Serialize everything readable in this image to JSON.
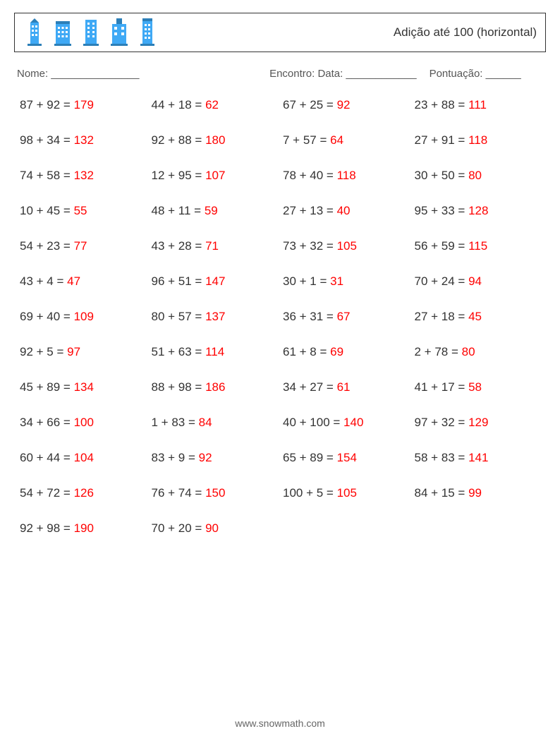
{
  "header": {
    "title": "Adição até 100 (horizontal)"
  },
  "info": {
    "nome_label": "Nome: _______________",
    "encontro_label": "Encontro: Data: ____________",
    "pontuacao_label": "Pontuação: ______"
  },
  "grid": {
    "columns": 4,
    "rows": 13,
    "font_size": 17,
    "expr_color": "#333333",
    "ans_color": "#ff0000",
    "background_color": "#ffffff",
    "problems": [
      {
        "a": 87,
        "b": 92,
        "ans": 179
      },
      {
        "a": 44,
        "b": 18,
        "ans": 62
      },
      {
        "a": 67,
        "b": 25,
        "ans": 92
      },
      {
        "a": 23,
        "b": 88,
        "ans": 111
      },
      {
        "a": 98,
        "b": 34,
        "ans": 132
      },
      {
        "a": 92,
        "b": 88,
        "ans": 180
      },
      {
        "a": 7,
        "b": 57,
        "ans": 64
      },
      {
        "a": 27,
        "b": 91,
        "ans": 118
      },
      {
        "a": 74,
        "b": 58,
        "ans": 132
      },
      {
        "a": 12,
        "b": 95,
        "ans": 107
      },
      {
        "a": 78,
        "b": 40,
        "ans": 118
      },
      {
        "a": 30,
        "b": 50,
        "ans": 80
      },
      {
        "a": 10,
        "b": 45,
        "ans": 55
      },
      {
        "a": 48,
        "b": 11,
        "ans": 59
      },
      {
        "a": 27,
        "b": 13,
        "ans": 40
      },
      {
        "a": 95,
        "b": 33,
        "ans": 128
      },
      {
        "a": 54,
        "b": 23,
        "ans": 77
      },
      {
        "a": 43,
        "b": 28,
        "ans": 71
      },
      {
        "a": 73,
        "b": 32,
        "ans": 105
      },
      {
        "a": 56,
        "b": 59,
        "ans": 115
      },
      {
        "a": 43,
        "b": 4,
        "ans": 47
      },
      {
        "a": 96,
        "b": 51,
        "ans": 147
      },
      {
        "a": 30,
        "b": 1,
        "ans": 31
      },
      {
        "a": 70,
        "b": 24,
        "ans": 94
      },
      {
        "a": 69,
        "b": 40,
        "ans": 109
      },
      {
        "a": 80,
        "b": 57,
        "ans": 137
      },
      {
        "a": 36,
        "b": 31,
        "ans": 67
      },
      {
        "a": 27,
        "b": 18,
        "ans": 45
      },
      {
        "a": 92,
        "b": 5,
        "ans": 97
      },
      {
        "a": 51,
        "b": 63,
        "ans": 114
      },
      {
        "a": 61,
        "b": 8,
        "ans": 69
      },
      {
        "a": 2,
        "b": 78,
        "ans": 80
      },
      {
        "a": 45,
        "b": 89,
        "ans": 134
      },
      {
        "a": 88,
        "b": 98,
        "ans": 186
      },
      {
        "a": 34,
        "b": 27,
        "ans": 61
      },
      {
        "a": 41,
        "b": 17,
        "ans": 58
      },
      {
        "a": 34,
        "b": 66,
        "ans": 100
      },
      {
        "a": 1,
        "b": 83,
        "ans": 84
      },
      {
        "a": 40,
        "b": 100,
        "ans": 140
      },
      {
        "a": 97,
        "b": 32,
        "ans": 129
      },
      {
        "a": 60,
        "b": 44,
        "ans": 104
      },
      {
        "a": 83,
        "b": 9,
        "ans": 92
      },
      {
        "a": 65,
        "b": 89,
        "ans": 154
      },
      {
        "a": 58,
        "b": 83,
        "ans": 141
      },
      {
        "a": 54,
        "b": 72,
        "ans": 126
      },
      {
        "a": 76,
        "b": 74,
        "ans": 150
      },
      {
        "a": 100,
        "b": 5,
        "ans": 105
      },
      {
        "a": 84,
        "b": 15,
        "ans": 99
      },
      {
        "a": 92,
        "b": 98,
        "ans": 190
      },
      {
        "a": 70,
        "b": 20,
        "ans": 90
      }
    ]
  },
  "footer": {
    "text": "www.snowmath.com"
  },
  "icons": {
    "building_color_primary": "#3fa9f5",
    "building_color_dark": "#2c7fb8",
    "building_count": 5
  }
}
